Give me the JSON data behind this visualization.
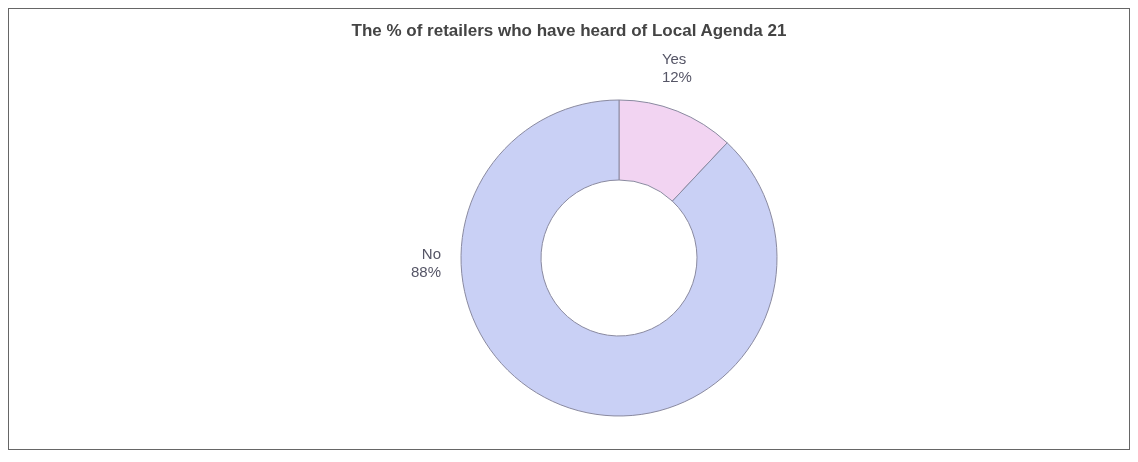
{
  "chart_data": {
    "type": "donut",
    "title": "The % of retailers who have heard of Local Agenda 21",
    "categories": [
      "Yes",
      "No"
    ],
    "values": [
      12,
      88
    ],
    "value_labels": [
      "12%",
      "88%"
    ],
    "colors": [
      "#f2d4f2",
      "#c9d0f5"
    ]
  }
}
